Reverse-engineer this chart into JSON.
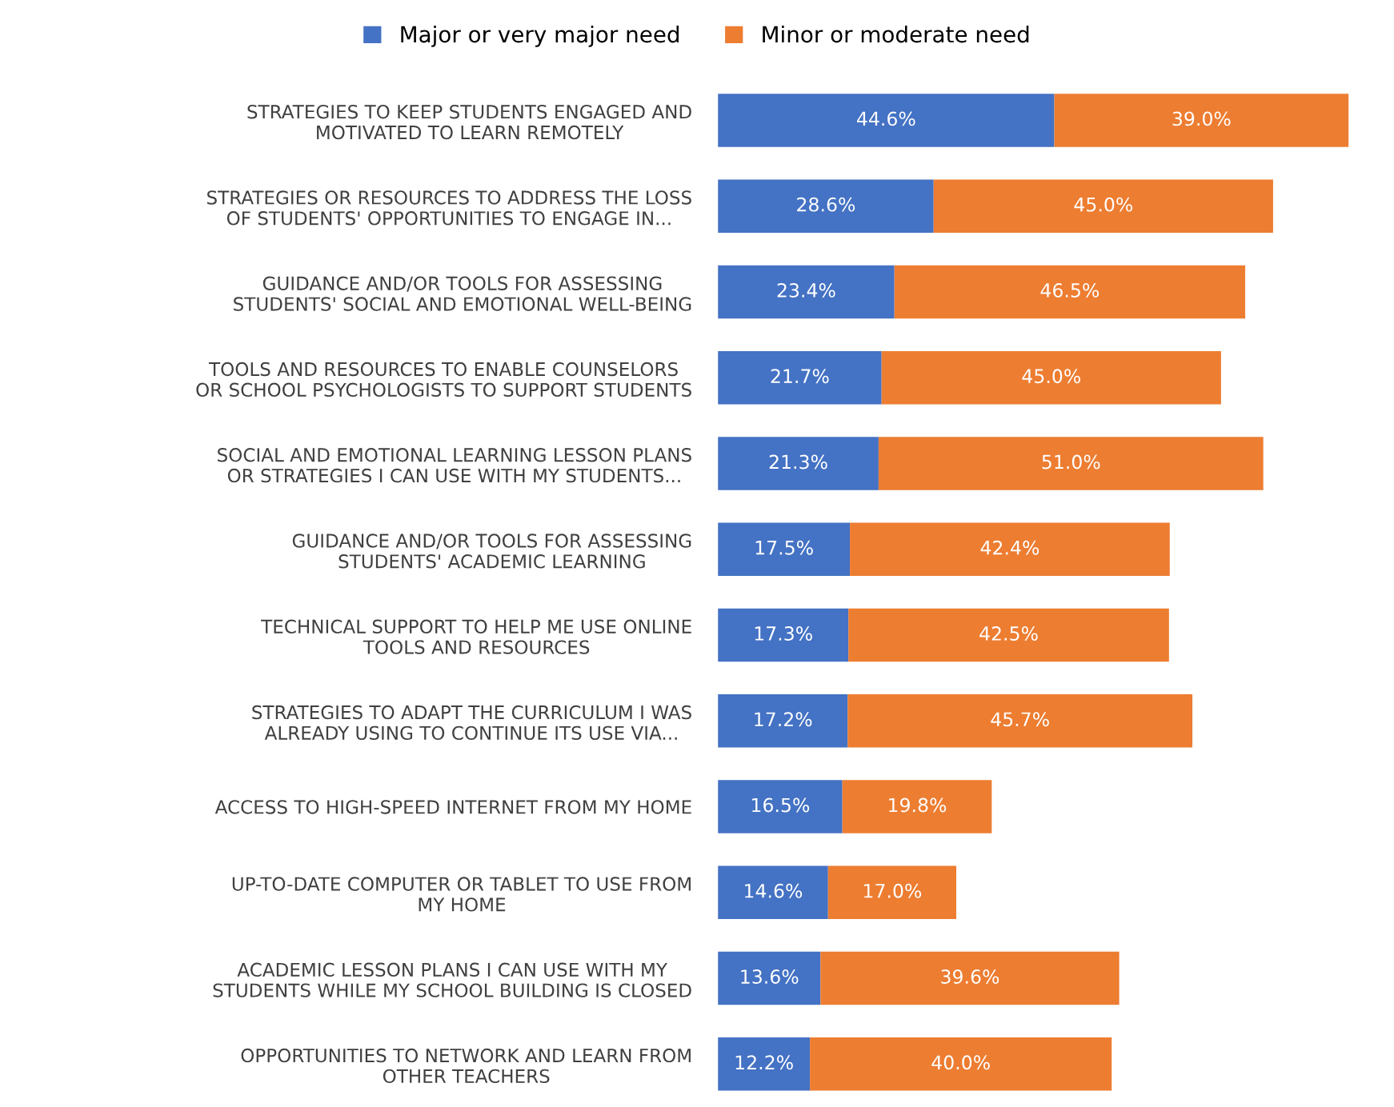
{
  "chart_data": {
    "type": "bar",
    "orientation": "horizontal",
    "stacked": true,
    "legend": "top",
    "grid": false,
    "tick_labels": "y",
    "categories": [
      "STRATEGIES TO KEEP STUDENTS ENGAGED AND\nMOTIVATED TO LEARN REMOTELY",
      "STRATEGIES OR RESOURCES TO ADDRESS THE LOSS\nOF STUDENTS' OPPORTUNITIES TO ENGAGE IN...",
      "GUIDANCE AND/OR TOOLS FOR ASSESSING\nSTUDENTS' SOCIAL AND EMOTIONAL WELL-BEING",
      "TOOLS AND RESOURCES TO ENABLE COUNSELORS\nOR SCHOOL PSYCHOLOGISTS TO SUPPORT STUDENTS",
      "SOCIAL AND EMOTIONAL LEARNING LESSON PLANS\nOR STRATEGIES I CAN USE WITH MY STUDENTS...",
      "GUIDANCE AND/OR TOOLS FOR ASSESSING\nSTUDENTS' ACADEMIC LEARNING",
      "TECHNICAL SUPPORT TO HELP ME USE ONLINE\nTOOLS AND RESOURCES",
      "STRATEGIES TO ADAPT THE CURRICULUM I WAS\nALREADY USING TO CONTINUE ITS USE VIA...",
      "ACCESS TO HIGH-SPEED INTERNET FROM MY HOME",
      "UP-TO-DATE COMPUTER OR TABLET TO USE FROM\nMY HOME",
      "ACADEMIC LESSON PLANS I CAN USE WITH MY\nSTUDENTS WHILE MY SCHOOL BUILDING IS CLOSED",
      "OPPORTUNITIES TO NETWORK AND LEARN FROM\nOTHER TEACHERS"
    ],
    "series": [
      {
        "name": "Major or very major need",
        "color": "#4472c4",
        "values": [
          44.6,
          28.6,
          23.4,
          21.7,
          21.3,
          17.5,
          17.3,
          17.2,
          16.5,
          14.6,
          13.6,
          12.2
        ],
        "value_labels": [
          "44.6%",
          "28.6%",
          "23.4%",
          "21.7%",
          "21.3%",
          "17.5%",
          "17.3%",
          "17.2%",
          "16.5%",
          "14.6%",
          "13.6%",
          "12.2%"
        ]
      },
      {
        "name": "Minor or moderate need",
        "color": "#ed7d31",
        "values": [
          39.0,
          45.0,
          46.5,
          45.0,
          51.0,
          42.4,
          42.5,
          45.7,
          19.8,
          17.0,
          39.6,
          40.0
        ],
        "value_labels": [
          "39.0%",
          "45.0%",
          "46.5%",
          "45.0%",
          "51.0%",
          "42.4%",
          "42.5%",
          "45.7%",
          "19.8%",
          "17.0%",
          "39.6%",
          "40.0%"
        ]
      }
    ]
  }
}
